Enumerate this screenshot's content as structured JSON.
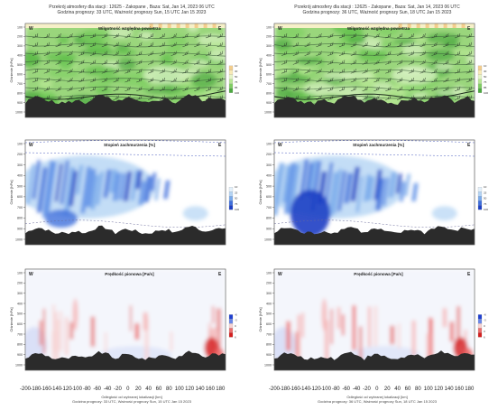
{
  "headers": [
    {
      "line1": "Przekrój atmosfery dla stacji : 12625 -      Zakopane         ,   Baza: Sat, Jan 14, 2023 06 UTC",
      "line2": "Godzina prognozy:  33 UTC, Ważność prognozy Sun, 15 UTC Jan 15 2023"
    },
    {
      "line1": "Przekrój atmosfery dla stacji : 12625 -      Zakopane         ,   Baza: Sat, Jan 14, 2023 06 UTC",
      "line2": "Godzina prognozy:  36 UTC, Ważność prognozy Sun, 18 UTC Jan 15 2023"
    }
  ],
  "footers": [
    {
      "axis_title": "Odległość od wybranej lokalizacji [km]",
      "valid": "Godzina prognozy:  33 UTC, Ważność prognozy Sun, 15 UTC Jan 15 2023"
    },
    {
      "axis_title": "Odległość od wybranej lokalizacji [km]",
      "valid": "Godzina prognozy:  36 UTC, Ważność prognozy Sun, 18 UTC Jan 15 2023"
    }
  ],
  "chart_data": [
    {
      "type": "heatmap",
      "title": "Wilgotność względna powietrza",
      "ylabel": "Ciśnienie [hPa]",
      "left_label": "W",
      "right_label": "E",
      "y_ticks": [
        "100",
        "200",
        "300",
        "400",
        "500",
        "600",
        "700",
        "800",
        "900",
        "1000"
      ],
      "legend_ticks": [
        "10",
        "30",
        "50",
        "75",
        "85",
        "100"
      ],
      "legend_colors": [
        "#f3cd8c",
        "#f8eab6",
        "#e6f5c8",
        "#b9e896",
        "#7fce62",
        "#4ca840"
      ]
    },
    {
      "type": "heatmap",
      "title": "Wilgotność względna powietrza",
      "ylabel": "Ciśnienie [hPa]",
      "left_label": "W",
      "right_label": "E",
      "y_ticks": [
        "100",
        "200",
        "300",
        "400",
        "500",
        "600",
        "700",
        "800",
        "900",
        "1000"
      ],
      "legend_ticks": [
        "10",
        "30",
        "50",
        "75",
        "85",
        "100"
      ],
      "legend_colors": [
        "#f3cd8c",
        "#f8eab6",
        "#e6f5c8",
        "#b9e896",
        "#7fce62",
        "#4ca840"
      ]
    },
    {
      "type": "heatmap",
      "title": "Stopień zachmurzenia [%]",
      "ylabel": "Ciśnienie [hPa]",
      "left_label": "W",
      "right_label": "E",
      "y_ticks": [
        "100",
        "200",
        "300",
        "400",
        "500",
        "600",
        "700",
        "800",
        "900",
        "1000"
      ],
      "legend_ticks": [
        "10",
        "25",
        "50",
        "75",
        "100"
      ],
      "legend_colors": [
        "#e3f0fb",
        "#b4d4f4",
        "#79aaeb",
        "#3f6fdc",
        "#1c3fc4"
      ]
    },
    {
      "type": "heatmap",
      "title": "Stopień zachmurzenia [%]",
      "ylabel": "Ciśnienie [hPa]",
      "left_label": "W",
      "right_label": "E",
      "y_ticks": [
        "100",
        "200",
        "300",
        "400",
        "500",
        "600",
        "700",
        "800",
        "900",
        "1000"
      ],
      "legend_ticks": [
        "10",
        "25",
        "50",
        "75",
        "100"
      ],
      "legend_colors": [
        "#e3f0fb",
        "#b4d4f4",
        "#79aaeb",
        "#3f6fdc",
        "#1c3fc4"
      ]
    },
    {
      "type": "heatmap",
      "title": "Prędkość pionowa [Pa/s]",
      "ylabel": "Ciśnienie [hPa]",
      "left_label": "W",
      "right_label": "E",
      "y_ticks": [
        "100",
        "200",
        "300",
        "400",
        "500",
        "600",
        "700",
        "800",
        "900",
        "1000"
      ],
      "legend_ticks": [
        "-6",
        "-3",
        "0",
        "3",
        "6"
      ],
      "legend_colors": [
        "#1f3fd0",
        "#6a86e8",
        "#f7d3d3",
        "#ec6d6d",
        "#d41e1e"
      ],
      "x": [
        -200,
        -180,
        -160,
        -140,
        -120,
        -100,
        -80,
        -60,
        -40,
        -20,
        0,
        20,
        40,
        60,
        80,
        100,
        120,
        140,
        160,
        180
      ],
      "xlabel": "Odległość od wybranej lokalizacji [km]"
    },
    {
      "type": "heatmap",
      "title": "Prędkość pionowa [Pa/s]",
      "ylabel": "Ciśnienie [hPa]",
      "left_label": "W",
      "right_label": "E",
      "y_ticks": [
        "100",
        "200",
        "300",
        "400",
        "500",
        "600",
        "700",
        "800",
        "900",
        "1000"
      ],
      "legend_ticks": [
        "-6",
        "-3",
        "0",
        "3",
        "6"
      ],
      "legend_colors": [
        "#1f3fd0",
        "#6a86e8",
        "#f7d3d3",
        "#ec6d6d",
        "#d41e1e"
      ],
      "x": [
        -200,
        -180,
        -160,
        -140,
        -120,
        -100,
        -80,
        -60,
        -40,
        -20,
        0,
        20,
        40,
        60,
        80,
        100,
        120,
        140,
        160,
        180
      ],
      "xlabel": "Odległość od wybranej lokalizacji [km]"
    }
  ]
}
